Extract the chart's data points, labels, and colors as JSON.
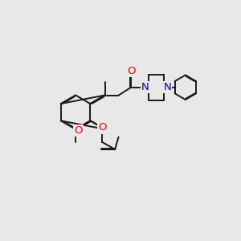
{
  "bg_color": "#e8e8e8",
  "bond_color": "#1a1a1a",
  "oxygen_color": "#ff0000",
  "nitrogen_color": "#0000cc",
  "lw": 1.4,
  "dbo": 0.03,
  "fs": 8.5,
  "xlim": [
    0,
    10
  ],
  "ylim": [
    0,
    10
  ]
}
